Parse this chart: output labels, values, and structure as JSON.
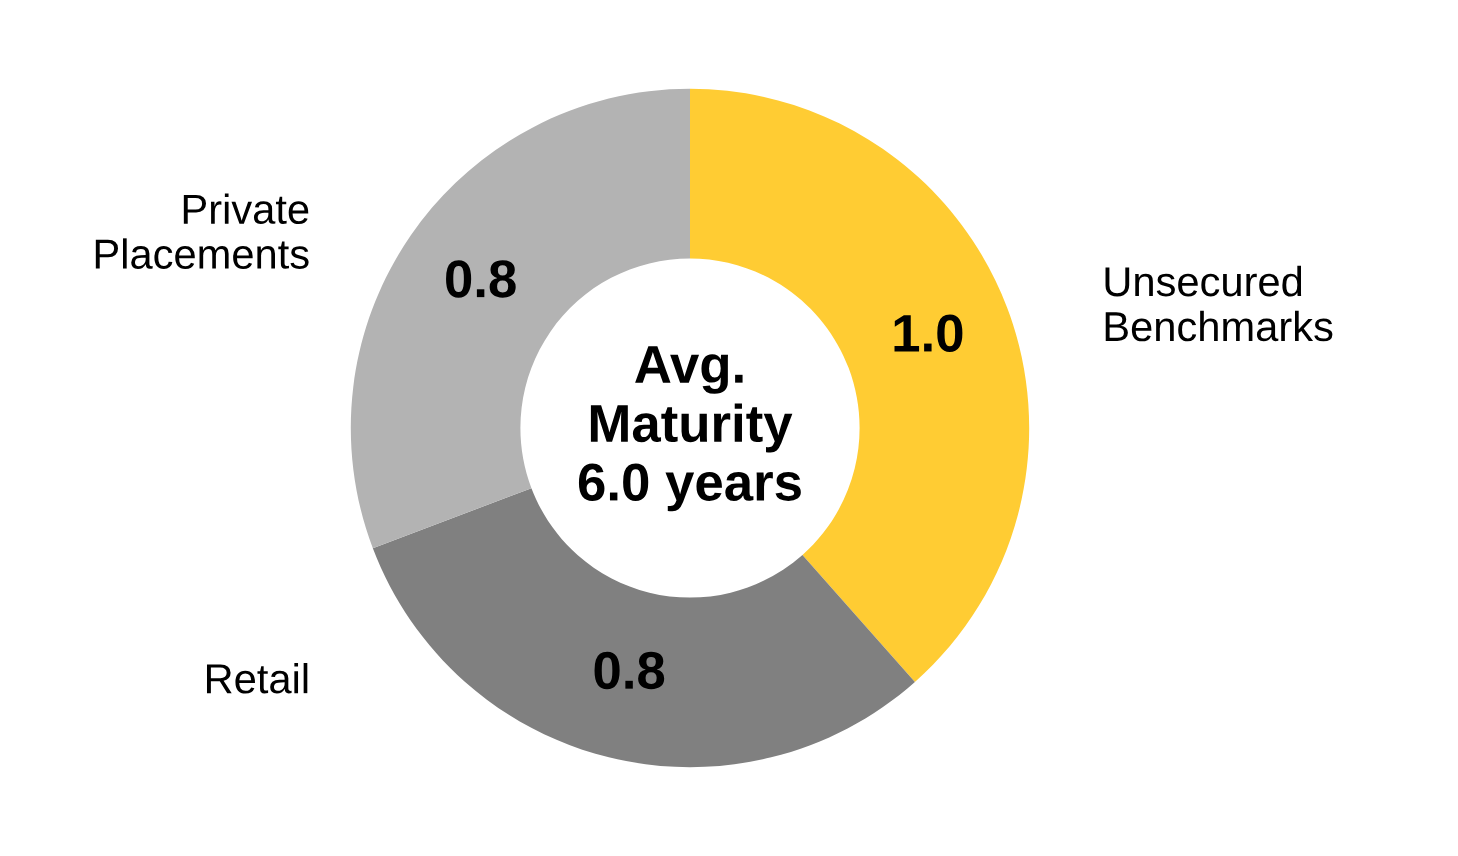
{
  "chart_data": {
    "type": "donut",
    "categories": [
      "Unsecured\nBenchmarks",
      "Retail",
      "Private\nPlacements"
    ],
    "values": [
      1.0,
      0.8,
      0.8
    ],
    "colors": [
      "#ffcc33",
      "#808080",
      "#b3b3b3"
    ],
    "value_labels": [
      "1.0",
      "0.8",
      "0.8"
    ],
    "annotations": [
      "Avg.\nMaturity\n6.0 years"
    ],
    "legend": false
  }
}
